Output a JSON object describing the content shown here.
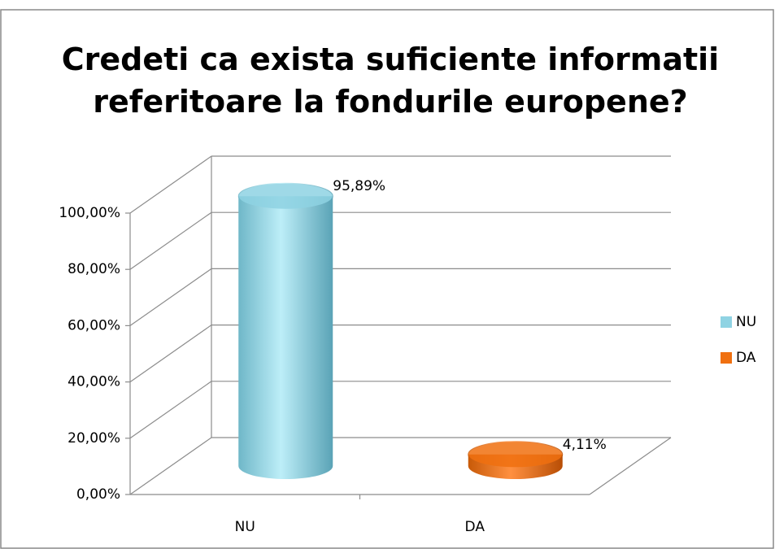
{
  "chart_data": {
    "type": "bar",
    "title": "Credeti ca exista suficiente informatii referitoare la fondurile europene?",
    "categories": [
      "NU",
      "DA"
    ],
    "series": [
      {
        "name": "NU",
        "color": "#8fd3e3",
        "values": [
          95.89,
          null
        ],
        "value_labels": [
          "95,89%",
          null
        ]
      },
      {
        "name": "DA",
        "color": "#f07010",
        "values": [
          null,
          4.11
        ],
        "value_labels": [
          null,
          "4,11%"
        ]
      }
    ],
    "ylim": [
      0,
      100
    ],
    "yticks": [
      {
        "value": 0,
        "label": "0,00%"
      },
      {
        "value": 20,
        "label": "20,00%"
      },
      {
        "value": 40,
        "label": "40,00%"
      },
      {
        "value": 60,
        "label": "60,00%"
      },
      {
        "value": 80,
        "label": "80,00%"
      },
      {
        "value": 100,
        "label": "100,00%"
      }
    ],
    "grid": true,
    "legend": "right"
  }
}
